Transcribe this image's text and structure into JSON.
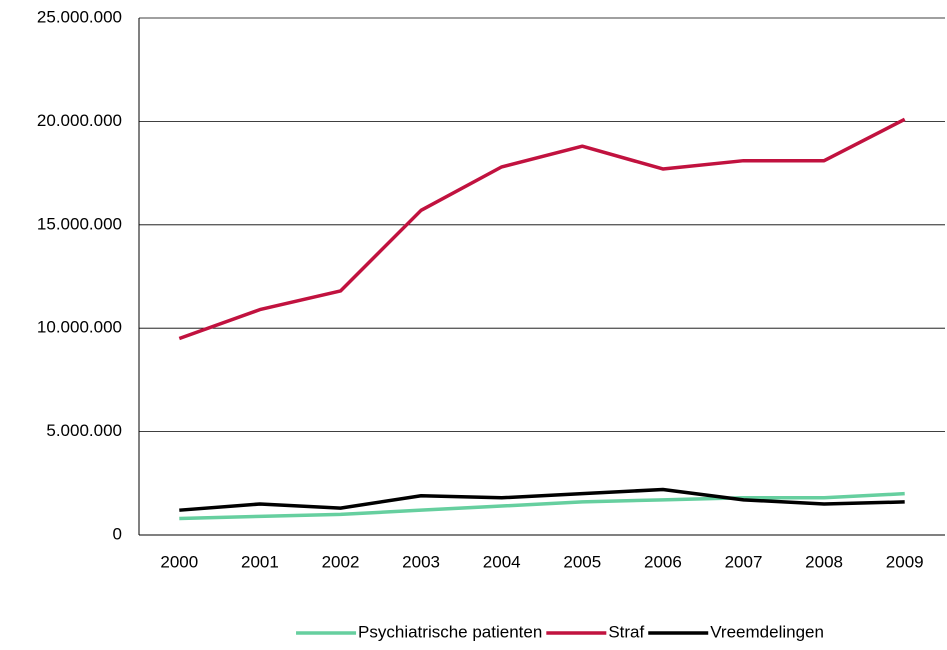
{
  "chart_data": {
    "type": "line",
    "categories": [
      "2000",
      "2001",
      "2002",
      "2003",
      "2004",
      "2005",
      "2006",
      "2007",
      "2008",
      "2009"
    ],
    "series": [
      {
        "name": "Psychiatrische patienten",
        "color": "#66cf9f",
        "values": [
          800000,
          900000,
          1000000,
          1200000,
          1400000,
          1600000,
          1700000,
          1800000,
          1800000,
          2000000
        ]
      },
      {
        "name": "Straf",
        "color": "#c1123f",
        "values": [
          9500000,
          10900000,
          11800000,
          15700000,
          17800000,
          18800000,
          17700000,
          18100000,
          18100000,
          20100000
        ]
      },
      {
        "name": "Vreemdelingen",
        "color": "#000000",
        "values": [
          1200000,
          1500000,
          1300000,
          1900000,
          1800000,
          2000000,
          2200000,
          1700000,
          1500000,
          1600000
        ]
      }
    ],
    "ylim": [
      0,
      25000000
    ],
    "yticks": [
      0,
      {
        "value": 5000000,
        "label": "5.000.000"
      },
      {
        "value": 10000000,
        "label": "10.000.000"
      },
      {
        "value": 15000000,
        "label": "15.000.000"
      },
      {
        "value": 20000000,
        "label": "20.000.000"
      },
      {
        "value": 25000000,
        "label": "25.000.000"
      }
    ],
    "grid": true,
    "legend": "bottom"
  }
}
